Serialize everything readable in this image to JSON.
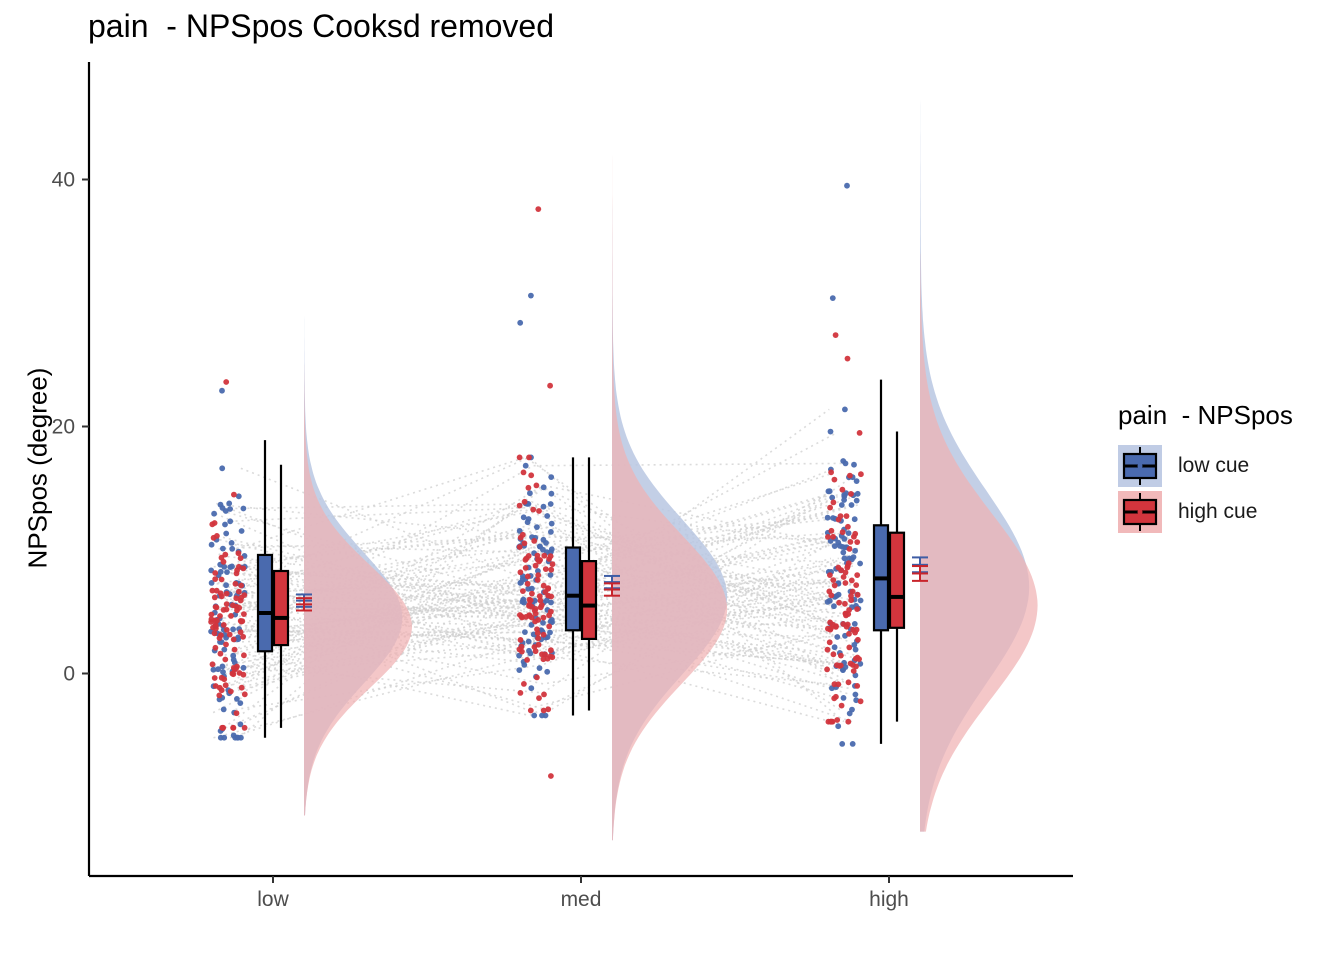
{
  "chart_data": {
    "type": "raincloud",
    "title": "pain  - NPSpos Cooksd removed",
    "xlabel": "",
    "ylabel": "NPSpos (degree)",
    "categories": [
      "low",
      "med",
      "high"
    ],
    "y_ticks": [
      0,
      20,
      40
    ],
    "ylim": [
      -16.5,
      49
    ],
    "grid": false,
    "legend": {
      "title": "pain  - NPSpos",
      "position": "right",
      "entries": [
        "low cue",
        "high cue"
      ]
    },
    "series": [
      {
        "name": "low cue",
        "color": "#3E5DA5",
        "fill_color": "#4A6AAE",
        "density_color": "#B9C7E2",
        "boxplot": [
          {
            "min": -5.2,
            "q1": 1.8,
            "median": 4.9,
            "q3": 9.6,
            "max": 18.9
          },
          {
            "min": -3.4,
            "q1": 3.5,
            "median": 6.3,
            "q3": 10.2,
            "max": 17.5
          },
          {
            "min": -5.7,
            "q1": 3.5,
            "median": 7.7,
            "q3": 12.0,
            "max": 23.8
          }
        ],
        "mean": [
          5.9,
          7.4,
          8.8
        ],
        "mean_se": [
          0.5,
          0.5,
          0.6
        ],
        "density": [
          {
            "mode": 4.5,
            "spread": 5.3,
            "peak_width": 0.82,
            "min": -11.5,
            "max": 29.0
          },
          {
            "mode": 6.2,
            "spread": 6.3,
            "peak_width": 0.96,
            "min": -13.5,
            "max": 38.0
          },
          {
            "mode": 7.0,
            "spread": 7.8,
            "peak_width": 0.91,
            "min": -12.8,
            "max": 46.5
          }
        ],
        "extreme_points": [
          {
            "x": "low",
            "y": -5.2
          },
          {
            "x": "low",
            "y": 22.9
          },
          {
            "x": "med",
            "y": 30.6
          },
          {
            "x": "med",
            "y": 28.4
          },
          {
            "x": "med",
            "y": -3.4
          },
          {
            "x": "high",
            "y": 39.5
          },
          {
            "x": "high",
            "y": 30.4
          },
          {
            "x": "high",
            "y": -5.7
          }
        ]
      },
      {
        "name": "high cue",
        "color": "#C8242B",
        "fill_color": "#D2353D",
        "density_color": "#F0B1B3",
        "boxplot": [
          {
            "min": -4.4,
            "q1": 2.3,
            "median": 4.5,
            "q3": 8.3,
            "max": 16.9
          },
          {
            "min": -3.0,
            "q1": 2.8,
            "median": 5.5,
            "q3": 9.1,
            "max": 17.5
          },
          {
            "min": -3.9,
            "q1": 3.7,
            "median": 6.2,
            "q3": 11.4,
            "max": 19.6
          }
        ],
        "mean": [
          5.6,
          6.8,
          8.1
        ],
        "mean_se": [
          0.5,
          0.5,
          0.6
        ],
        "density": [
          {
            "mode": 3.8,
            "spread": 5.0,
            "peak_width": 0.9,
            "min": -11.5,
            "max": 25.0
          },
          {
            "mode": 5.2,
            "spread": 6.0,
            "peak_width": 0.96,
            "min": -13.5,
            "max": 42.5
          },
          {
            "mode": 5.5,
            "spread": 7.5,
            "peak_width": 0.98,
            "min": -12.8,
            "max": 34.0
          }
        ],
        "extreme_points": [
          {
            "x": "low",
            "y": 23.6
          },
          {
            "x": "low",
            "y": -4.4
          },
          {
            "x": "med",
            "y": 37.6
          },
          {
            "x": "med",
            "y": -8.3
          },
          {
            "x": "med",
            "y": 23.3
          },
          {
            "x": "high",
            "y": 27.4
          },
          {
            "x": "high",
            "y": 25.5
          },
          {
            "x": "high",
            "y": -3.9
          }
        ]
      }
    ]
  }
}
